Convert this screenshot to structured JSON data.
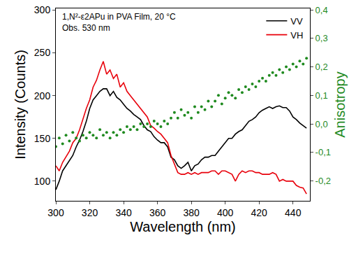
{
  "chart_data": {
    "type": "line",
    "annotations": [
      "1,N²-ε2APu in PVA Film, 20 °C",
      "Obs. 530 nm"
    ],
    "x_label": "Wavelength (nm)",
    "y_label": "Intensity (Counts)",
    "y2_label": "Anisotropy",
    "x": [
      300,
      302,
      304,
      306,
      308,
      310,
      312,
      314,
      316,
      318,
      320,
      322,
      324,
      326,
      328,
      330,
      332,
      334,
      336,
      338,
      340,
      342,
      344,
      346,
      348,
      350,
      352,
      354,
      356,
      358,
      360,
      362,
      364,
      366,
      368,
      370,
      372,
      374,
      376,
      378,
      380,
      382,
      384,
      386,
      388,
      390,
      392,
      394,
      396,
      398,
      400,
      402,
      404,
      406,
      408,
      410,
      412,
      414,
      416,
      418,
      420,
      422,
      424,
      426,
      428,
      430,
      432,
      434,
      436,
      438,
      440,
      442,
      444,
      446,
      448
    ],
    "series": [
      {
        "name": "VV",
        "color": "#000000",
        "line_style": "solid",
        "values": [
          90,
          100,
          112,
          118,
          125,
          130,
          140,
          148,
          158,
          170,
          185,
          195,
          200,
          205,
          208,
          208,
          200,
          205,
          198,
          195,
          190,
          185,
          182,
          178,
          175,
          172,
          165,
          160,
          158,
          152,
          148,
          145,
          145,
          140,
          128,
          125,
          118,
          115,
          118,
          122,
          112,
          118,
          120,
          125,
          128,
          128,
          130,
          130,
          135,
          140,
          145,
          150,
          150,
          155,
          158,
          160,
          165,
          170,
          172,
          175,
          180,
          183,
          185,
          187,
          185,
          187,
          188,
          186,
          186,
          182,
          175,
          172,
          168,
          165,
          162
        ]
      },
      {
        "name": "VH",
        "color": "#e8000b",
        "line_style": "solid",
        "values": [
          118,
          112,
          122,
          128,
          135,
          145,
          150,
          160,
          172,
          185,
          195,
          210,
          218,
          230,
          240,
          225,
          230,
          220,
          225,
          210,
          215,
          205,
          200,
          195,
          190,
          185,
          180,
          175,
          165,
          162,
          158,
          155,
          150,
          145,
          130,
          120,
          110,
          108,
          108,
          110,
          108,
          110,
          108,
          110,
          110,
          110,
          112,
          112,
          108,
          112,
          112,
          110,
          108,
          100,
          108,
          112,
          110,
          112,
          112,
          110,
          110,
          108,
          108,
          108,
          110,
          108,
          100,
          102,
          100,
          100,
          100,
          95,
          93,
          92,
          85
        ]
      },
      {
        "color": "#1f8a1f",
        "type": "scatter",
        "marker": "circle",
        "axis": "y2",
        "values": [
          -0.08,
          -0.05,
          -0.07,
          -0.04,
          -0.06,
          -0.03,
          -0.05,
          -0.06,
          -0.04,
          -0.05,
          -0.03,
          -0.04,
          -0.05,
          -0.02,
          -0.04,
          -0.03,
          -0.05,
          -0.03,
          -0.04,
          -0.02,
          -0.03,
          -0.01,
          -0.02,
          -0.01,
          -0.02,
          0.0,
          -0.01,
          0.0,
          -0.01,
          0.01,
          0.0,
          -0.01,
          0.01,
          0.0,
          0.02,
          0.04,
          0.02,
          0.05,
          0.03,
          0.04,
          0.02,
          0.06,
          0.04,
          0.06,
          0.05,
          0.08,
          0.06,
          0.08,
          0.1,
          0.07,
          0.09,
          0.11,
          0.1,
          0.09,
          0.12,
          0.11,
          0.13,
          0.12,
          0.14,
          0.13,
          0.15,
          0.16,
          0.15,
          0.17,
          0.18,
          0.17,
          0.19,
          0.18,
          0.2,
          0.19,
          0.21,
          0.2,
          0.22,
          0.21,
          0.23
        ]
      }
    ],
    "xlim": [
      300,
      450
    ],
    "xticks": [
      300,
      320,
      340,
      360,
      380,
      400,
      420,
      440
    ],
    "ylim": [
      77,
      302
    ],
    "yticks": [
      100,
      150,
      200,
      250,
      300
    ],
    "y2lim": [
      -0.27,
      0.405
    ],
    "y2ticks": [
      {
        "value": -0.2,
        "label": "-0,2"
      },
      {
        "value": -0.1,
        "label": "-0,1"
      },
      {
        "value": 0.0,
        "label": "0,0"
      },
      {
        "value": 0.1,
        "label": "0,1"
      },
      {
        "value": 0.2,
        "label": "0,2"
      },
      {
        "value": 0.3,
        "label": "0,3"
      },
      {
        "value": 0.4,
        "label": "0,4"
      }
    ],
    "grid": false,
    "legend": "top-right"
  }
}
